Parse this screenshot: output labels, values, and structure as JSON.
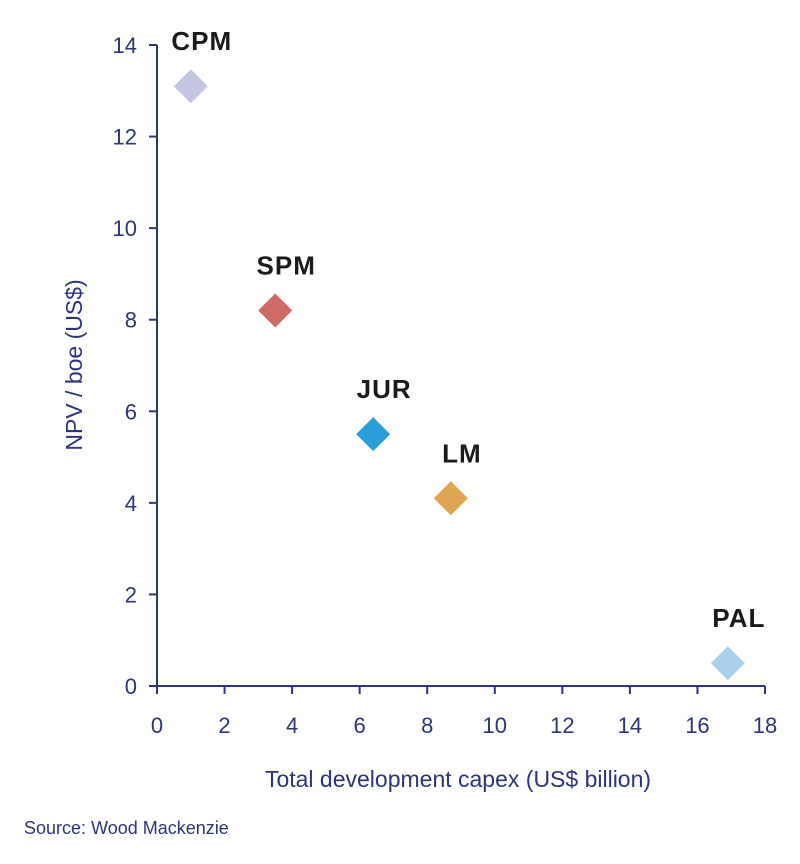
{
  "chart_data": {
    "type": "scatter",
    "title": "",
    "xlabel": "Total development capex (US$ billion)",
    "ylabel": "NPV / boe (US$)",
    "xlim": [
      0,
      18
    ],
    "ylim": [
      0,
      14
    ],
    "xticks": [
      0,
      2,
      4,
      6,
      8,
      10,
      12,
      14,
      16,
      18
    ],
    "yticks": [
      0,
      2,
      4,
      6,
      8,
      10,
      12,
      14
    ],
    "grid": false,
    "marker": "diamond",
    "points": [
      {
        "label": "CPM",
        "x": 1.0,
        "y": 13.1,
        "color": "#c3c6e2"
      },
      {
        "label": "SPM",
        "x": 3.5,
        "y": 8.2,
        "color": "#cf6b64"
      },
      {
        "label": "JUR",
        "x": 6.4,
        "y": 5.5,
        "color": "#2a9ed8"
      },
      {
        "label": "LM",
        "x": 8.7,
        "y": 4.1,
        "color": "#e0a553"
      },
      {
        "label": "PAL",
        "x": 16.9,
        "y": 0.5,
        "color": "#a9d0ec"
      }
    ]
  },
  "colors": {
    "axis": "#2b3577",
    "label": "#1a1a1a"
  },
  "source": "Source: Wood Mackenzie"
}
